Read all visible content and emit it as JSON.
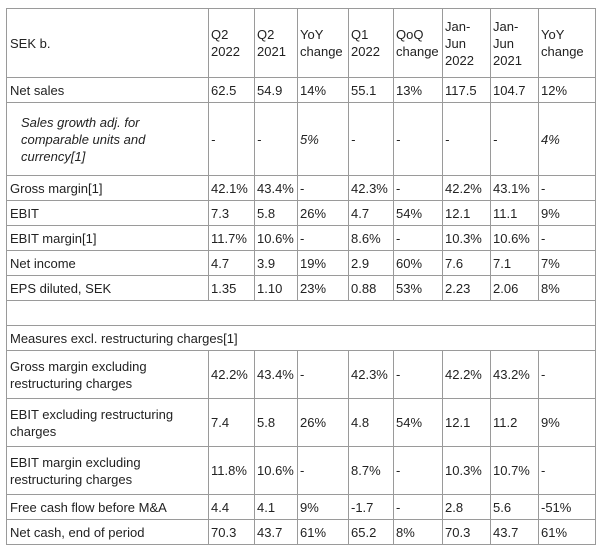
{
  "table": {
    "header": [
      "SEK b.",
      "Q2 2022",
      "Q2 2021",
      "YoY change",
      "Q1 2022",
      "QoQ change",
      "Jan-Jun 2022",
      "Jan-Jun 2021",
      "YoY change"
    ],
    "sections": [
      {
        "rows": [
          {
            "cells": [
              "Net sales",
              "62.5",
              "54.9",
              "14%",
              "55.1",
              "13%",
              "117.5",
              "104.7",
              "12%"
            ]
          },
          {
            "italic": true,
            "cells": [
              "Sales growth adj. for comparable units and currency[1]",
              "-",
              "-",
              "5%",
              "-",
              "-",
              "-",
              "-",
              "4%"
            ]
          },
          {
            "cells": [
              "Gross margin[1]",
              "42.1%",
              "43.4%",
              "-",
              "42.3%",
              "-",
              "42.2%",
              "43.1%",
              "-"
            ]
          },
          {
            "cells": [
              "EBIT",
              "7.3",
              "5.8",
              "26%",
              "4.7",
              "54%",
              "12.1",
              "11.1",
              "9%"
            ]
          },
          {
            "cells": [
              "EBIT margin[1]",
              "11.7%",
              "10.6%",
              "-",
              "8.6%",
              "-",
              "10.3%",
              "10.6%",
              "-"
            ]
          },
          {
            "cells": [
              "Net income",
              "4.7",
              "3.9",
              "19%",
              "2.9",
              "60%",
              "7.6",
              "7.1",
              "7%"
            ]
          },
          {
            "cells": [
              "EPS diluted, SEK",
              "1.35",
              "1.10",
              "23%",
              "0.88",
              "53%",
              "2.23",
              "2.06",
              "8%"
            ]
          }
        ]
      },
      {
        "title": "Measures excl. restructuring charges[1]",
        "rows": [
          {
            "cells": [
              "Gross margin excluding restructuring charges",
              "42.2%",
              "43.4%",
              "-",
              "42.3%",
              "-",
              "42.2%",
              "43.2%",
              "-"
            ]
          },
          {
            "cells": [
              "EBIT excluding restructuring charges",
              "7.4",
              "5.8",
              "26%",
              "4.8",
              "54%",
              "12.1",
              "11.2",
              "9%"
            ]
          },
          {
            "cells": [
              "EBIT margin excluding restructuring charges",
              "11.8%",
              "10.6%",
              "-",
              "8.7%",
              "-",
              "10.3%",
              "10.7%",
              "-"
            ]
          },
          {
            "cells": [
              "Free cash flow before M&A",
              "4.4",
              "4.1",
              "9%",
              "-1.7",
              "-",
              "2.8",
              "5.6",
              "-51%"
            ]
          },
          {
            "cells": [
              "Net cash, end of period",
              "70.3",
              "43.7",
              "61%",
              "65.2",
              "8%",
              "70.3",
              "43.7",
              "61%"
            ]
          }
        ]
      }
    ]
  }
}
